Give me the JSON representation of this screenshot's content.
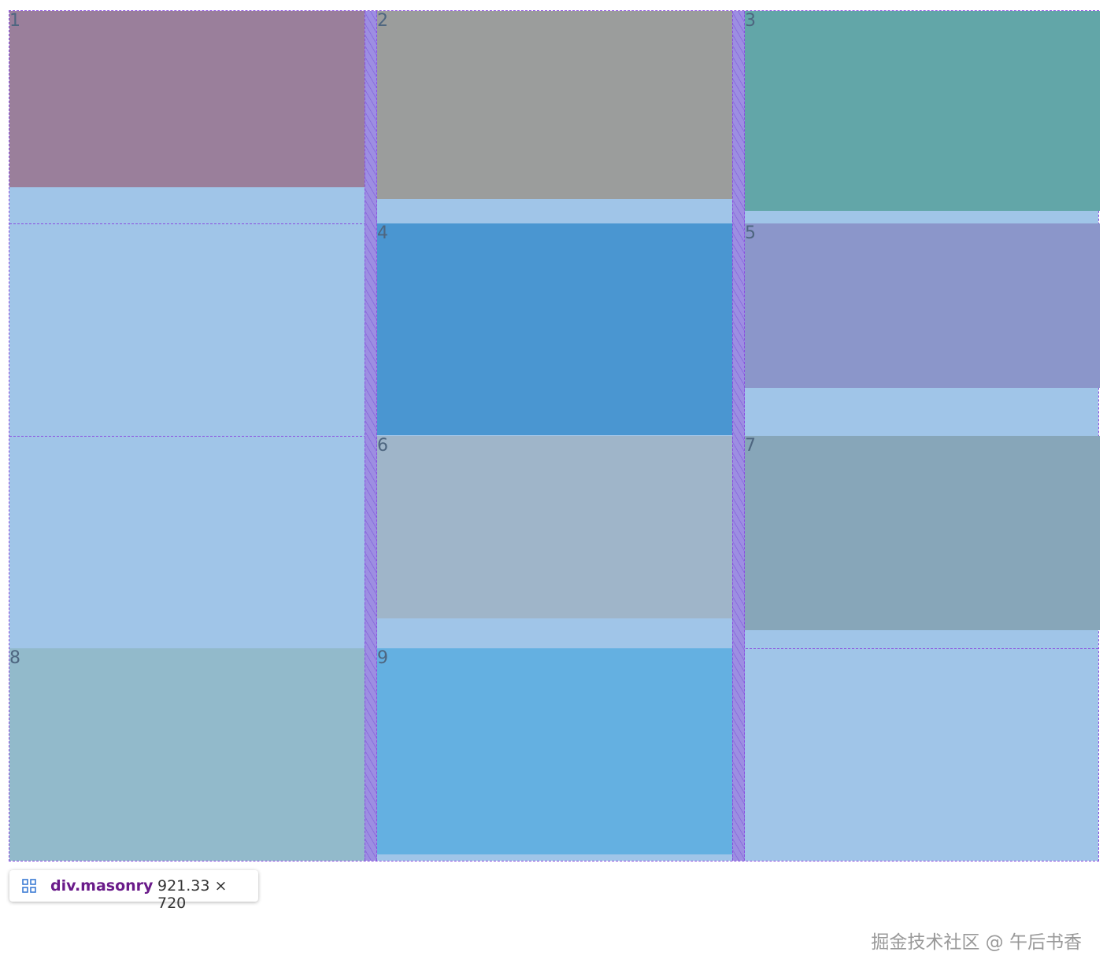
{
  "items": [
    {
      "label": "1"
    },
    {
      "label": "2"
    },
    {
      "label": "3"
    },
    {
      "label": "4"
    },
    {
      "label": "5"
    },
    {
      "label": "6"
    },
    {
      "label": "7"
    },
    {
      "label": "8"
    },
    {
      "label": "9"
    }
  ],
  "tooltip": {
    "selector": "div.masonry",
    "size": "921.33 × 720"
  },
  "watermark": "掘金技术社区 @ 午后书香"
}
